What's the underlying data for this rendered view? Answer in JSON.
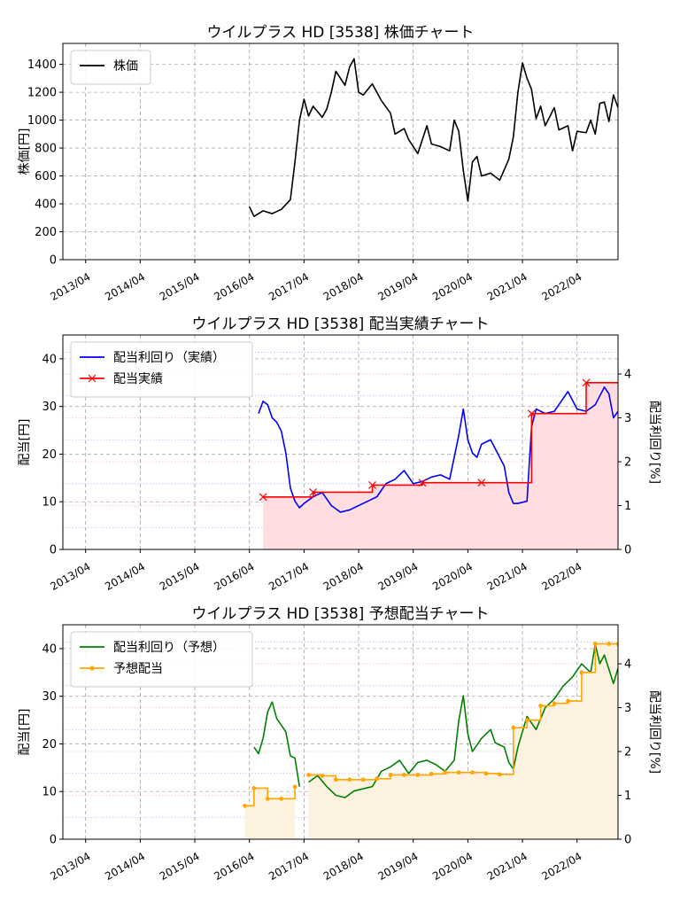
{
  "chart_data": [
    {
      "type": "line",
      "title": "ウイルプラス HD [3538]  株価チャート",
      "ylabel": "株価[円]",
      "ylim": [
        0,
        1550
      ],
      "yticks": [
        0,
        200,
        400,
        600,
        800,
        1000,
        1200,
        1400
      ],
      "xticks": [
        "2013/04",
        "2014/04",
        "2015/04",
        "2016/04",
        "2017/04",
        "2018/04",
        "2019/04",
        "2020/04",
        "2021/04",
        "2022/04"
      ],
      "legend": "top-left",
      "grid": true,
      "series": [
        {
          "name": "株価",
          "color": "#000000",
          "points": [
            [
              "2016/04",
              380
            ],
            [
              "2016/05",
              310
            ],
            [
              "2016/07",
              350
            ],
            [
              "2016/09",
              330
            ],
            [
              "2016/11",
              360
            ],
            [
              "2017/01",
              430
            ],
            [
              "2017/02",
              700
            ],
            [
              "2017/03",
              1000
            ],
            [
              "2017/04",
              1150
            ],
            [
              "2017/05",
              1030
            ],
            [
              "2017/06",
              1100
            ],
            [
              "2017/08",
              1020
            ],
            [
              "2017/09",
              1080
            ],
            [
              "2017/10",
              1200
            ],
            [
              "2017/11",
              1350
            ],
            [
              "2018/01",
              1250
            ],
            [
              "2018/02",
              1380
            ],
            [
              "2018/03",
              1440
            ],
            [
              "2018/04",
              1200
            ],
            [
              "2018/05",
              1180
            ],
            [
              "2018/07",
              1260
            ],
            [
              "2018/09",
              1140
            ],
            [
              "2018/11",
              1050
            ],
            [
              "2018/12",
              900
            ],
            [
              "2019/02",
              940
            ],
            [
              "2019/03",
              860
            ],
            [
              "2019/05",
              760
            ],
            [
              "2019/07",
              960
            ],
            [
              "2019/08",
              830
            ],
            [
              "2019/10",
              810
            ],
            [
              "2019/12",
              780
            ],
            [
              "2020/01",
              1000
            ],
            [
              "2020/02",
              920
            ],
            [
              "2020/03",
              640
            ],
            [
              "2020/04",
              420
            ],
            [
              "2020/05",
              700
            ],
            [
              "2020/06",
              740
            ],
            [
              "2020/07",
              600
            ],
            [
              "2020/09",
              620
            ],
            [
              "2020/11",
              570
            ],
            [
              "2021/01",
              720
            ],
            [
              "2021/02",
              880
            ],
            [
              "2021/03",
              1200
            ],
            [
              "2021/04",
              1410
            ],
            [
              "2021/05",
              1300
            ],
            [
              "2021/06",
              1220
            ],
            [
              "2021/07",
              1010
            ],
            [
              "2021/08",
              1100
            ],
            [
              "2021/09",
              960
            ],
            [
              "2021/11",
              1090
            ],
            [
              "2021/12",
              930
            ],
            [
              "2022/02",
              960
            ],
            [
              "2022/03",
              780
            ],
            [
              "2022/04",
              920
            ],
            [
              "2022/06",
              910
            ],
            [
              "2022/07",
              1000
            ],
            [
              "2022/08",
              900
            ],
            [
              "2022/09",
              1120
            ],
            [
              "2022/10",
              1130
            ],
            [
              "2022/11",
              990
            ],
            [
              "2022/12",
              1180
            ],
            [
              "2023/01",
              1090
            ]
          ]
        }
      ]
    },
    {
      "type": "line",
      "title": "ウイルプラス HD [3538]  配当実績チャート",
      "ylabel": "配当[円]",
      "y2label": "配当利回り[%]",
      "ylim": [
        0,
        45
      ],
      "y2lim": [
        0,
        4.89
      ],
      "yticks": [
        0,
        10,
        20,
        30,
        40
      ],
      "y2ticks": [
        0,
        1,
        2,
        3,
        4
      ],
      "xticks": [
        "2013/04",
        "2014/04",
        "2015/04",
        "2016/04",
        "2017/04",
        "2018/04",
        "2019/04",
        "2020/04",
        "2021/04",
        "2022/04"
      ],
      "legend": "top-left",
      "grid": true,
      "series": [
        {
          "name": "配当利回り（実績）",
          "color": "#0000ff",
          "axis": "right",
          "points": [
            [
              "2016/06",
              3.1
            ],
            [
              "2016/07",
              3.38
            ],
            [
              "2016/08",
              3.3
            ],
            [
              "2016/09",
              3.0
            ],
            [
              "2016/10",
              2.9
            ],
            [
              "2016/11",
              2.7
            ],
            [
              "2016/12",
              2.2
            ],
            [
              "2017/01",
              1.4
            ],
            [
              "2017/02",
              1.1
            ],
            [
              "2017/03",
              0.95
            ],
            [
              "2017/04",
              1.05
            ],
            [
              "2017/06",
              1.2
            ],
            [
              "2017/08",
              1.3
            ],
            [
              "2017/10",
              1.0
            ],
            [
              "2017/12",
              0.85
            ],
            [
              "2018/02",
              0.9
            ],
            [
              "2018/04",
              1.0
            ],
            [
              "2018/06",
              1.1
            ],
            [
              "2018/08",
              1.2
            ],
            [
              "2018/10",
              1.5
            ],
            [
              "2018/12",
              1.6
            ],
            [
              "2019/02",
              1.8
            ],
            [
              "2019/04",
              1.5
            ],
            [
              "2019/06",
              1.55
            ],
            [
              "2019/08",
              1.65
            ],
            [
              "2019/10",
              1.7
            ],
            [
              "2019/12",
              1.6
            ],
            [
              "2020/01",
              2.1
            ],
            [
              "2020/02",
              2.6
            ],
            [
              "2020/03",
              3.2
            ],
            [
              "2020/04",
              2.5
            ],
            [
              "2020/05",
              2.2
            ],
            [
              "2020/06",
              2.1
            ],
            [
              "2020/07",
              2.4
            ],
            [
              "2020/09",
              2.5
            ],
            [
              "2020/10",
              2.3
            ],
            [
              "2020/12",
              1.9
            ],
            [
              "2021/01",
              1.3
            ],
            [
              "2021/02",
              1.05
            ],
            [
              "2021/03",
              1.05
            ],
            [
              "2021/05",
              1.1
            ],
            [
              "2021/06",
              2.8
            ],
            [
              "2021/07",
              3.2
            ],
            [
              "2021/09",
              3.1
            ],
            [
              "2021/11",
              3.15
            ],
            [
              "2021/12",
              3.3
            ],
            [
              "2022/02",
              3.6
            ],
            [
              "2022/03",
              3.4
            ],
            [
              "2022/04",
              3.2
            ],
            [
              "2022/06",
              3.15
            ],
            [
              "2022/08",
              3.3
            ],
            [
              "2022/10",
              3.7
            ],
            [
              "2022/11",
              3.55
            ],
            [
              "2022/12",
              3.0
            ],
            [
              "2023/01",
              3.15
            ]
          ]
        },
        {
          "name": "配当実績",
          "color": "#ff0000",
          "axis": "left",
          "marker": "x",
          "step": true,
          "fill": "#ffdde1",
          "points": [
            [
              "2016/07",
              11
            ],
            [
              "2017/06",
              12
            ],
            [
              "2018/07",
              13.5
            ],
            [
              "2019/06",
              14
            ],
            [
              "2020/07",
              14
            ],
            [
              "2021/06",
              28.5
            ],
            [
              "2022/06",
              35
            ],
            [
              "2023/01",
              35
            ]
          ]
        }
      ]
    },
    {
      "type": "line",
      "title": "ウイルプラス HD [3538]  予想配当チャート",
      "ylabel": "配当[円]",
      "y2label": "配当利回り[%]",
      "ylim": [
        0,
        45
      ],
      "y2lim": [
        0,
        4.89
      ],
      "yticks": [
        0,
        10,
        20,
        30,
        40
      ],
      "y2ticks": [
        0,
        1,
        2,
        3,
        4
      ],
      "xticks": [
        "2013/04",
        "2014/04",
        "2015/04",
        "2016/04",
        "2017/04",
        "2018/04",
        "2019/04",
        "2020/04",
        "2021/04",
        "2022/04"
      ],
      "legend": "top-left",
      "grid": true,
      "series": [
        {
          "name": "配当利回り（予想）",
          "color": "#008000",
          "axis": "right",
          "segments": [
            [
              [
                "2016/05",
                2.1
              ],
              [
                "2016/06",
                1.95
              ],
              [
                "2016/07",
                2.3
              ],
              [
                "2016/08",
                2.9
              ],
              [
                "2016/09",
                3.13
              ],
              [
                "2016/10",
                2.75
              ],
              [
                "2016/11",
                2.6
              ],
              [
                "2016/12",
                2.45
              ],
              [
                "2017/01",
                1.9
              ],
              [
                "2017/02",
                1.85
              ],
              [
                "2017/03",
                1.2
              ]
            ],
            [
              [
                "2017/05",
                1.3
              ],
              [
                "2017/07",
                1.45
              ],
              [
                "2017/09",
                1.2
              ],
              [
                "2017/11",
                1.0
              ],
              [
                "2018/01",
                0.95
              ],
              [
                "2018/03",
                1.1
              ],
              [
                "2018/05",
                1.15
              ],
              [
                "2018/07",
                1.2
              ],
              [
                "2018/09",
                1.55
              ],
              [
                "2018/11",
                1.65
              ],
              [
                "2019/01",
                1.8
              ],
              [
                "2019/03",
                1.5
              ],
              [
                "2019/05",
                1.75
              ],
              [
                "2019/07",
                1.8
              ],
              [
                "2019/09",
                1.7
              ],
              [
                "2019/11",
                1.55
              ],
              [
                "2020/01",
                1.8
              ],
              [
                "2020/02",
                2.7
              ],
              [
                "2020/03",
                3.27
              ],
              [
                "2020/04",
                2.4
              ],
              [
                "2020/05",
                2.0
              ],
              [
                "2020/07",
                2.3
              ],
              [
                "2020/09",
                2.5
              ],
              [
                "2020/10",
                2.2
              ],
              [
                "2020/12",
                2.1
              ],
              [
                "2021/01",
                1.75
              ],
              [
                "2021/02",
                1.6
              ],
              [
                "2021/03",
                2.1
              ],
              [
                "2021/05",
                2.8
              ],
              [
                "2021/07",
                2.5
              ],
              [
                "2021/09",
                3.0
              ],
              [
                "2021/11",
                3.2
              ],
              [
                "2022/01",
                3.5
              ],
              [
                "2022/03",
                3.7
              ],
              [
                "2022/05",
                4.0
              ],
              [
                "2022/07",
                3.8
              ],
              [
                "2022/08",
                4.45
              ],
              [
                "2022/09",
                4.0
              ],
              [
                "2022/10",
                4.2
              ],
              [
                "2022/12",
                3.55
              ],
              [
                "2023/01",
                3.9
              ]
            ]
          ]
        },
        {
          "name": "予想配当",
          "color": "#ffa500",
          "axis": "left",
          "marker": "o",
          "step": true,
          "fill": "#fdf2df",
          "segments": [
            [
              [
                "2016/03",
                7
              ],
              [
                "2016/05",
                10.7
              ],
              [
                "2016/08",
                8.5
              ],
              [
                "2016/11",
                8.5
              ],
              [
                "2017/02",
                11
              ]
            ],
            [
              [
                "2017/05",
                13.5
              ],
              [
                "2017/08",
                13.3
              ],
              [
                "2017/11",
                12.5
              ],
              [
                "2018/02",
                12.5
              ],
              [
                "2018/05",
                12.5
              ],
              [
                "2018/08",
                12.7
              ],
              [
                "2018/11",
                13.5
              ],
              [
                "2019/02",
                13.5
              ],
              [
                "2019/05",
                13.5
              ],
              [
                "2019/08",
                13.7
              ],
              [
                "2019/11",
                14
              ],
              [
                "2020/02",
                14
              ],
              [
                "2020/05",
                14
              ],
              [
                "2020/08",
                13.8
              ],
              [
                "2020/11",
                13.6
              ],
              [
                "2021/02",
                23.4
              ],
              [
                "2021/05",
                25
              ],
              [
                "2021/08",
                28
              ],
              [
                "2021/11",
                28.5
              ],
              [
                "2022/02",
                29
              ],
              [
                "2022/05",
                35
              ],
              [
                "2022/08",
                41
              ],
              [
                "2022/11",
                41
              ],
              [
                "2023/01",
                41
              ]
            ]
          ]
        }
      ]
    }
  ]
}
